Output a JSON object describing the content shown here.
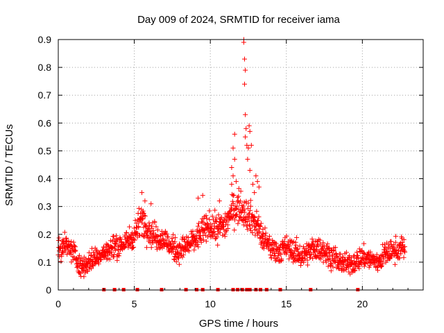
{
  "chart_data": {
    "type": "scatter",
    "title": "Day 009 of 2024, SRMTID for receiver iama",
    "xlabel": "GPS time / hours",
    "ylabel": "SRMTID / TECUs",
    "xlim": [
      0,
      24
    ],
    "ylim": [
      0,
      0.9
    ],
    "xticks": [
      0,
      5,
      10,
      15,
      20
    ],
    "yticks": [
      0,
      0.1,
      0.2,
      0.3,
      0.4,
      0.5,
      0.6,
      0.7,
      0.8,
      0.9
    ],
    "xtick_labels": [
      "0",
      "5",
      "10",
      "15",
      "20"
    ],
    "ytick_labels": [
      "0",
      "0.1",
      "0.2",
      "0.3",
      "0.4",
      "0.5",
      "0.6",
      "0.7",
      "0.8",
      "0.9"
    ],
    "grid": true,
    "marker": "+",
    "color": "#ff0000",
    "series": [
      {
        "name": "SRMTID",
        "x_range": [
          0,
          22.8
        ],
        "point_count": 1370,
        "trend": [
          [
            0.0,
            0.14
          ],
          [
            0.5,
            0.16
          ],
          [
            1.0,
            0.14
          ],
          [
            1.5,
            0.08
          ],
          [
            2.0,
            0.1
          ],
          [
            2.5,
            0.12
          ],
          [
            3.0,
            0.13
          ],
          [
            3.5,
            0.15
          ],
          [
            4.0,
            0.16
          ],
          [
            4.5,
            0.17
          ],
          [
            5.0,
            0.2
          ],
          [
            5.5,
            0.26
          ],
          [
            6.0,
            0.21
          ],
          [
            6.5,
            0.19
          ],
          [
            7.0,
            0.18
          ],
          [
            7.5,
            0.15
          ],
          [
            8.0,
            0.14
          ],
          [
            8.5,
            0.16
          ],
          [
            9.0,
            0.18
          ],
          [
            9.5,
            0.21
          ],
          [
            10.0,
            0.23
          ],
          [
            10.5,
            0.22
          ],
          [
            11.0,
            0.24
          ],
          [
            11.5,
            0.29
          ],
          [
            12.0,
            0.3
          ],
          [
            12.5,
            0.27
          ],
          [
            13.0,
            0.24
          ],
          [
            13.5,
            0.18
          ],
          [
            14.0,
            0.15
          ],
          [
            14.5,
            0.14
          ],
          [
            15.0,
            0.15
          ],
          [
            15.5,
            0.14
          ],
          [
            16.0,
            0.12
          ],
          [
            16.5,
            0.14
          ],
          [
            17.0,
            0.15
          ],
          [
            17.5,
            0.14
          ],
          [
            18.0,
            0.12
          ],
          [
            18.5,
            0.1
          ],
          [
            19.0,
            0.09
          ],
          [
            19.5,
            0.1
          ],
          [
            20.0,
            0.12
          ],
          [
            20.5,
            0.11
          ],
          [
            21.0,
            0.1
          ],
          [
            21.5,
            0.13
          ],
          [
            22.0,
            0.14
          ],
          [
            22.5,
            0.15
          ],
          [
            22.8,
            0.15
          ]
        ],
        "spike_points": [
          [
            12.2,
            0.9
          ],
          [
            12.2,
            0.89
          ],
          [
            12.25,
            0.83
          ],
          [
            12.3,
            0.79
          ],
          [
            12.25,
            0.74
          ],
          [
            12.3,
            0.63
          ],
          [
            12.35,
            0.58
          ],
          [
            12.3,
            0.55
          ],
          [
            12.4,
            0.52
          ],
          [
            12.5,
            0.51
          ],
          [
            12.6,
            0.57
          ],
          [
            12.55,
            0.59
          ],
          [
            12.7,
            0.52
          ],
          [
            12.45,
            0.47
          ],
          [
            12.6,
            0.43
          ],
          [
            12.8,
            0.38
          ],
          [
            13.0,
            0.41
          ],
          [
            11.6,
            0.56
          ],
          [
            11.5,
            0.51
          ],
          [
            11.6,
            0.47
          ],
          [
            11.4,
            0.44
          ],
          [
            11.5,
            0.41
          ],
          [
            11.7,
            0.39
          ],
          [
            11.4,
            0.38
          ],
          [
            13.1,
            0.39
          ],
          [
            12.9,
            0.35
          ],
          [
            13.2,
            0.37
          ],
          [
            5.5,
            0.35
          ],
          [
            5.7,
            0.32
          ],
          [
            9.5,
            0.34
          ],
          [
            9.2,
            0.33
          ],
          [
            6.1,
            0.31
          ],
          [
            10.6,
            0.32
          ]
        ]
      }
    ],
    "flag_points_x": [
      3.0,
      3.7,
      4.3,
      5.2,
      6.8,
      8.4,
      9.1,
      9.5,
      10.5,
      11.5,
      11.8,
      12.1,
      12.4,
      12.6,
      13.0,
      13.3,
      13.7,
      14.6,
      16.6,
      19.7
    ]
  }
}
